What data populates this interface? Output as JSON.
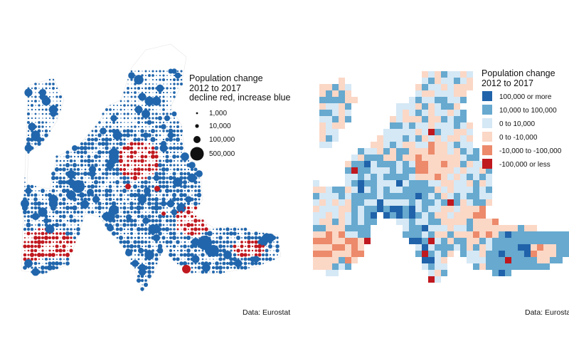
{
  "left_map": {
    "legend_title": [
      "Population change",
      "2012 to 2017",
      "decline red, increase blue"
    ],
    "legend_items": [
      {
        "label": "1,000",
        "value": 1000
      },
      {
        "label": "10,000",
        "value": 10000
      },
      {
        "label": "100,000",
        "value": 100000
      },
      {
        "label": "500,000",
        "value": 500000
      }
    ],
    "caption": "Data: Eurostat",
    "colors": {
      "increase": "#2166ac",
      "decline": "#c0181f",
      "outline": "#e6e6e6"
    }
  },
  "right_map": {
    "legend_title": [
      "Population change",
      "2012 to 2017"
    ],
    "legend_items": [
      {
        "label": "100,000 or more",
        "color": "#2063aa"
      },
      {
        "label": "10,000 to 100,000",
        "color": "#67a9cf"
      },
      {
        "label": "0 to 10,000",
        "color": "#d5e8f5"
      },
      {
        "label": "0 to -10,000",
        "color": "#fbd7c6"
      },
      {
        "label": "-10,000 to -100,000",
        "color": "#ec8a6b"
      },
      {
        "label": "-100,000 or less",
        "color": "#c0181f"
      }
    ],
    "caption": "Data: Eurostat"
  }
}
